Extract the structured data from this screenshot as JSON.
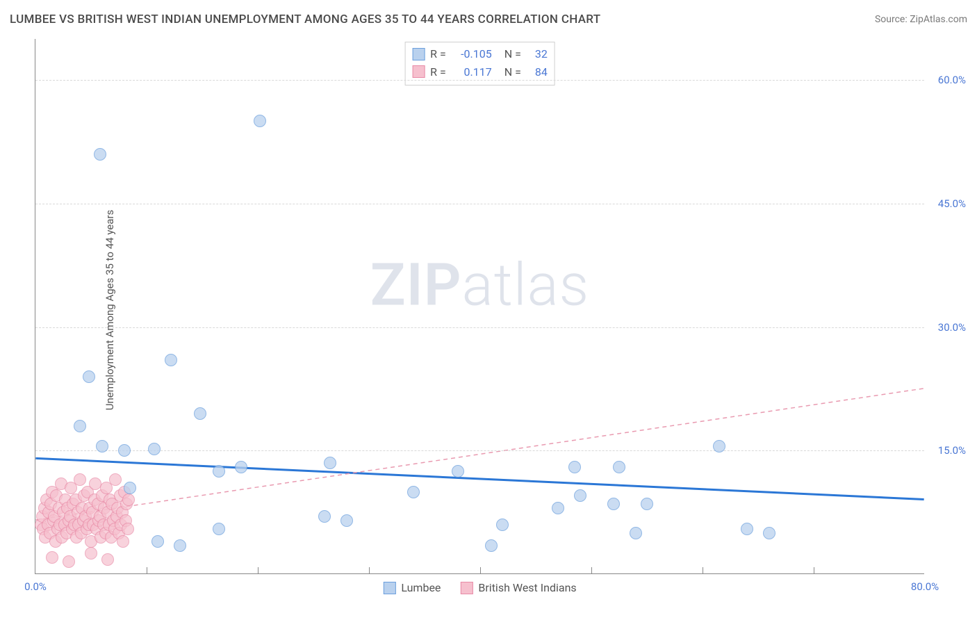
{
  "header": {
    "title": "LUMBEE VS BRITISH WEST INDIAN UNEMPLOYMENT AMONG AGES 35 TO 44 YEARS CORRELATION CHART",
    "source": "Source: ZipAtlas.com"
  },
  "chart": {
    "type": "scatter",
    "watermark_bold": "ZIP",
    "watermark_light": "atlas",
    "yaxis_title": "Unemployment Among Ages 35 to 44 years",
    "background_color": "#ffffff",
    "grid_color": "#d8d8d8",
    "axis_color": "#888888",
    "xlim": [
      0,
      80
    ],
    "ylim": [
      0,
      65
    ],
    "xtick_labels": [
      {
        "v": 0,
        "label": "0.0%"
      },
      {
        "v": 80,
        "label": "80.0%"
      }
    ],
    "xtick_minor": [
      10,
      20,
      30,
      40,
      50,
      60,
      70
    ],
    "ytick_labels": [
      {
        "v": 15,
        "label": "15.0%"
      },
      {
        "v": 30,
        "label": "30.0%"
      },
      {
        "v": 45,
        "label": "45.0%"
      },
      {
        "v": 60,
        "label": "60.0%"
      }
    ],
    "correlation_legend": [
      {
        "swatch_fill": "#b9d1ee",
        "swatch_border": "#6b9fdd",
        "r": "-0.105",
        "n": "32"
      },
      {
        "swatch_fill": "#f6c0ce",
        "swatch_border": "#e88aa6",
        "r": "0.117",
        "n": "84"
      }
    ],
    "series_legend": [
      {
        "label": "Lumbee",
        "swatch_fill": "#b9d1ee",
        "swatch_border": "#6b9fdd"
      },
      {
        "label": "British West Indians",
        "swatch_fill": "#f6c0ce",
        "swatch_border": "#e88aa6"
      }
    ],
    "trend_lines": [
      {
        "name": "lumbee-trend",
        "x1": 0,
        "y1": 14.0,
        "x2": 80,
        "y2": 9.0,
        "stroke": "#2b77d6",
        "width": 3,
        "dash": "none"
      },
      {
        "name": "bwi-trend",
        "x1": 0,
        "y1": 6.5,
        "x2": 80,
        "y2": 22.5,
        "stroke": "#e99ab0",
        "width": 1.5,
        "dash": "6,5"
      }
    ],
    "series": [
      {
        "name": "lumbee",
        "fill": "#b9d1ee",
        "stroke": "#6b9fdd",
        "opacity": 0.75,
        "radius": 9,
        "points": [
          [
            5.8,
            51.0
          ],
          [
            20.2,
            55.0
          ],
          [
            4.8,
            24.0
          ],
          [
            12.2,
            26.0
          ],
          [
            4.0,
            18.0
          ],
          [
            6.0,
            15.5
          ],
          [
            8.0,
            15.0
          ],
          [
            10.7,
            15.2
          ],
          [
            14.8,
            19.5
          ],
          [
            16.5,
            12.5
          ],
          [
            8.5,
            10.5
          ],
          [
            11.0,
            4.0
          ],
          [
            13.0,
            3.5
          ],
          [
            16.5,
            5.5
          ],
          [
            26.0,
            7.0
          ],
          [
            26.5,
            13.5
          ],
          [
            38.0,
            12.5
          ],
          [
            48.5,
            13.0
          ],
          [
            52.0,
            8.5
          ],
          [
            54.0,
            5.0
          ],
          [
            61.5,
            15.5
          ],
          [
            64.0,
            5.5
          ],
          [
            66.0,
            5.0
          ],
          [
            41.0,
            3.5
          ],
          [
            28.0,
            6.5
          ],
          [
            49.0,
            9.5
          ],
          [
            52.5,
            13.0
          ],
          [
            47.0,
            8.0
          ],
          [
            55.0,
            8.5
          ],
          [
            42.0,
            6.0
          ],
          [
            18.5,
            13.0
          ],
          [
            34.0,
            10.0
          ]
        ]
      },
      {
        "name": "british-west-indians",
        "fill": "#f6c0ce",
        "stroke": "#e88aa6",
        "opacity": 0.7,
        "radius": 9,
        "points": [
          [
            0.5,
            6.0
          ],
          [
            0.6,
            7.0
          ],
          [
            0.7,
            5.5
          ],
          [
            0.8,
            8.0
          ],
          [
            0.9,
            4.5
          ],
          [
            1.0,
            9.0
          ],
          [
            1.1,
            6.0
          ],
          [
            1.2,
            7.5
          ],
          [
            1.3,
            5.0
          ],
          [
            1.4,
            8.5
          ],
          [
            1.5,
            10.0
          ],
          [
            1.6,
            6.5
          ],
          [
            1.7,
            7.0
          ],
          [
            1.8,
            4.0
          ],
          [
            1.9,
            9.5
          ],
          [
            2.0,
            5.5
          ],
          [
            2.1,
            8.0
          ],
          [
            2.2,
            6.0
          ],
          [
            2.3,
            11.0
          ],
          [
            2.4,
            4.5
          ],
          [
            2.5,
            7.5
          ],
          [
            2.6,
            6.0
          ],
          [
            2.7,
            9.0
          ],
          [
            2.8,
            5.0
          ],
          [
            2.9,
            8.0
          ],
          [
            3.0,
            6.5
          ],
          [
            3.1,
            7.0
          ],
          [
            3.2,
            10.5
          ],
          [
            3.3,
            5.5
          ],
          [
            3.4,
            8.5
          ],
          [
            3.5,
            6.0
          ],
          [
            3.6,
            9.0
          ],
          [
            3.7,
            4.5
          ],
          [
            3.8,
            7.5
          ],
          [
            3.9,
            6.0
          ],
          [
            4.0,
            11.5
          ],
          [
            4.1,
            5.0
          ],
          [
            4.2,
            8.0
          ],
          [
            4.3,
            6.5
          ],
          [
            4.4,
            9.5
          ],
          [
            4.5,
            7.0
          ],
          [
            4.6,
            5.5
          ],
          [
            4.7,
            10.0
          ],
          [
            4.8,
            6.0
          ],
          [
            4.9,
            8.0
          ],
          [
            5.0,
            4.0
          ],
          [
            5.1,
            7.5
          ],
          [
            5.2,
            6.0
          ],
          [
            5.3,
            9.0
          ],
          [
            5.4,
            11.0
          ],
          [
            5.5,
            5.5
          ],
          [
            5.6,
            8.5
          ],
          [
            5.7,
            6.5
          ],
          [
            5.8,
            7.0
          ],
          [
            5.9,
            4.5
          ],
          [
            6.0,
            9.5
          ],
          [
            6.1,
            6.0
          ],
          [
            6.2,
            8.0
          ],
          [
            6.3,
            5.0
          ],
          [
            6.4,
            10.5
          ],
          [
            6.5,
            7.5
          ],
          [
            6.6,
            6.0
          ],
          [
            6.7,
            9.0
          ],
          [
            6.8,
            4.5
          ],
          [
            6.9,
            8.5
          ],
          [
            7.0,
            6.5
          ],
          [
            7.1,
            5.5
          ],
          [
            7.2,
            11.5
          ],
          [
            7.3,
            7.0
          ],
          [
            7.4,
            8.0
          ],
          [
            7.5,
            5.0
          ],
          [
            7.6,
            9.5
          ],
          [
            7.7,
            6.0
          ],
          [
            7.8,
            7.5
          ],
          [
            7.9,
            4.0
          ],
          [
            8.0,
            10.0
          ],
          [
            8.1,
            6.5
          ],
          [
            8.2,
            8.5
          ],
          [
            8.3,
            5.5
          ],
          [
            8.4,
            9.0
          ],
          [
            1.5,
            2.0
          ],
          [
            3.0,
            1.5
          ],
          [
            5.0,
            2.5
          ],
          [
            6.5,
            1.8
          ]
        ]
      }
    ]
  }
}
